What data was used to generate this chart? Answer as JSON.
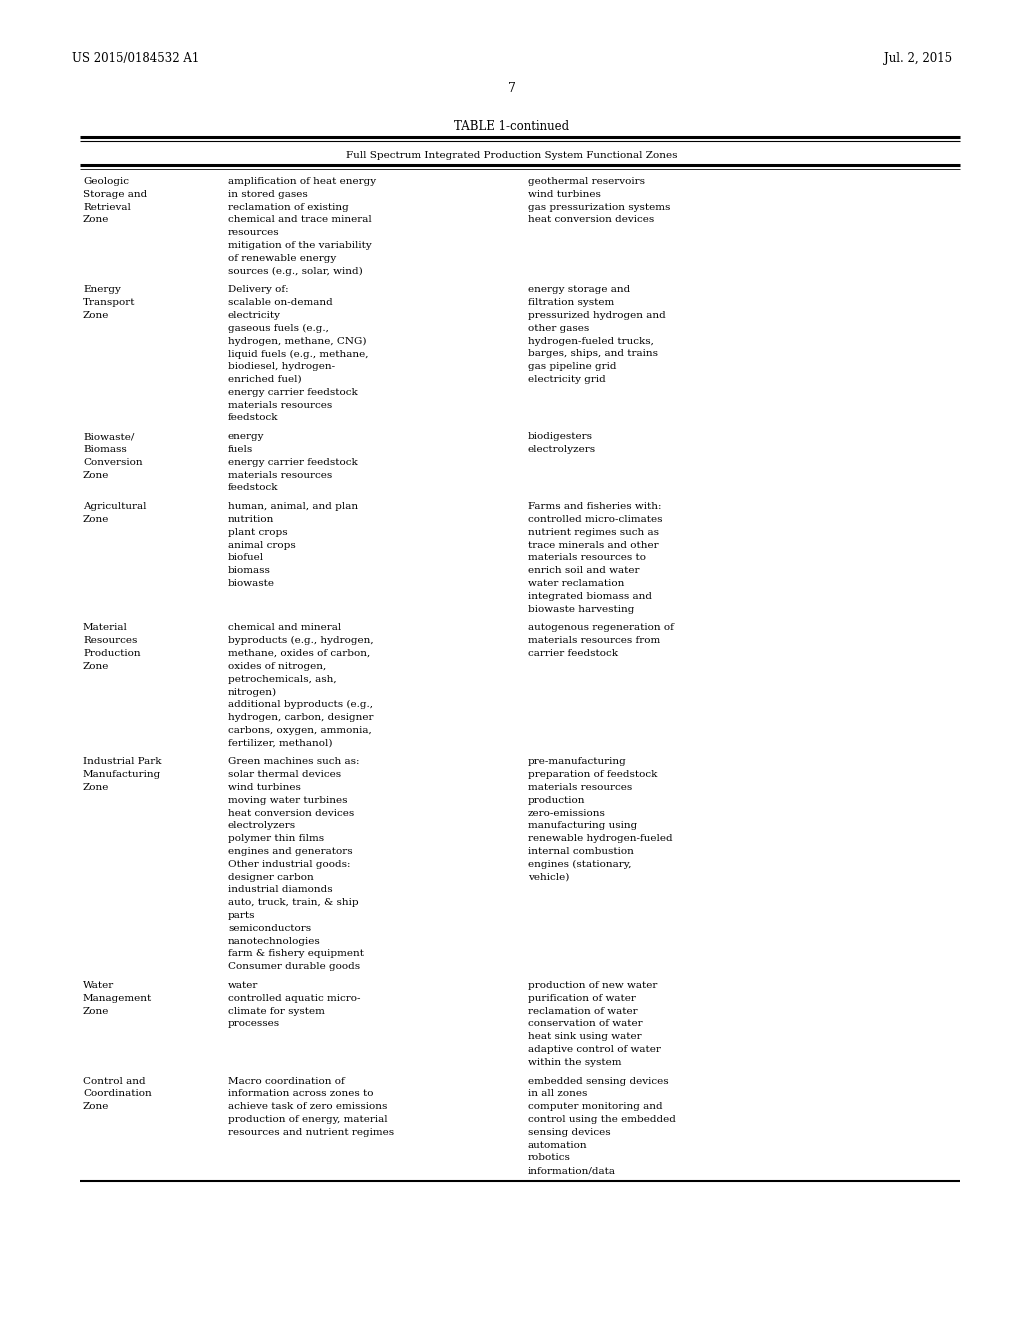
{
  "header_left": "US 2015/0184532 A1",
  "header_right": "Jul. 2, 2015",
  "page_number": "7",
  "table_title": "TABLE 1-continued",
  "table_header": "Full Spectrum Integrated Production System Functional Zones",
  "background_color": "#ffffff",
  "text_color": "#000000",
  "rows": [
    {
      "col1": [
        "Geologic",
        "Storage and",
        "Retrieval",
        "Zone"
      ],
      "col2": [
        "amplification of heat energy",
        "in stored gases",
        "reclamation of existing",
        "chemical and trace mineral",
        "resources",
        "mitigation of the variability",
        "of renewable energy",
        "sources (e.g., solar, wind)"
      ],
      "col3": [
        "geothermal reservoirs",
        "wind turbines",
        "gas pressurization systems",
        "heat conversion devices"
      ]
    },
    {
      "col1": [
        "Energy",
        "Transport",
        "Zone"
      ],
      "col2": [
        "Delivery of:",
        "scalable on-demand",
        "electricity",
        "gaseous fuels (e.g.,",
        "hydrogen, methane, CNG)",
        "liquid fuels (e.g., methane,",
        "biodiesel, hydrogen-",
        "enriched fuel)",
        "energy carrier feedstock",
        "materials resources",
        "feedstock"
      ],
      "col3": [
        "energy storage and",
        "filtration system",
        "pressurized hydrogen and",
        "other gases",
        "hydrogen-fueled trucks,",
        "barges, ships, and trains",
        "gas pipeline grid",
        "electricity grid"
      ]
    },
    {
      "col1": [
        "Biowaste/",
        "Biomass",
        "Conversion",
        "Zone"
      ],
      "col2": [
        "energy",
        "fuels",
        "energy carrier feedstock",
        "materials resources",
        "feedstock"
      ],
      "col3": [
        "biodigesters",
        "electrolyzers"
      ]
    },
    {
      "col1": [
        "Agricultural",
        "Zone"
      ],
      "col2": [
        "human, animal, and plan",
        "nutrition",
        "plant crops",
        "animal crops",
        "biofuel",
        "biomass",
        "biowaste"
      ],
      "col3": [
        "Farms and fisheries with:",
        "controlled micro-climates",
        "nutrient regimes such as",
        "trace minerals and other",
        "materials resources to",
        "enrich soil and water",
        "water reclamation",
        "integrated biomass and",
        "biowaste harvesting"
      ]
    },
    {
      "col1": [
        "Material",
        "Resources",
        "Production",
        "Zone"
      ],
      "col2": [
        "chemical and mineral",
        "byproducts (e.g., hydrogen,",
        "methane, oxides of carbon,",
        "oxides of nitrogen,",
        "petrochemicals, ash,",
        "nitrogen)",
        "additional byproducts (e.g.,",
        "hydrogen, carbon, designer",
        "carbons, oxygen, ammonia,",
        "fertilizer, methanol)"
      ],
      "col3": [
        "autogenous regeneration of",
        "materials resources from",
        "carrier feedstock"
      ]
    },
    {
      "col1": [
        "Industrial Park",
        "Manufacturing",
        "Zone"
      ],
      "col2": [
        "Green machines such as:",
        "solar thermal devices",
        "wind turbines",
        "moving water turbines",
        "heat conversion devices",
        "electrolyzers",
        "polymer thin films",
        "engines and generators",
        "Other industrial goods:",
        "designer carbon",
        "industrial diamonds",
        "auto, truck, train, & ship",
        "parts",
        "semiconductors",
        "nanotechnologies",
        "farm & fishery equipment",
        "Consumer durable goods"
      ],
      "col3": [
        "pre-manufacturing",
        "preparation of feedstock",
        "materials resources",
        "production",
        "zero-emissions",
        "manufacturing using",
        "renewable hydrogen-fueled",
        "internal combustion",
        "engines (stationary,",
        "vehicle)"
      ]
    },
    {
      "col1": [
        "Water",
        "Management",
        "Zone"
      ],
      "col2": [
        "water",
        "controlled aquatic micro-",
        "climate for system",
        "processes"
      ],
      "col3": [
        "production of new water",
        "purification of water",
        "reclamation of water",
        "conservation of water",
        "heat sink using water",
        "adaptive control of water",
        "within the system"
      ]
    },
    {
      "col1": [
        "Control and",
        "Coordination",
        "Zone"
      ],
      "col2": [
        "Macro coordination of",
        "information across zones to",
        "achieve task of zero emissions",
        "production of energy, material",
        "resources and nutrient regimes"
      ],
      "col3": [
        "embedded sensing devices",
        "in all zones",
        "computer monitoring and",
        "control using the embedded",
        "sensing devices",
        "automation",
        "robotics",
        "information/data"
      ]
    }
  ]
}
